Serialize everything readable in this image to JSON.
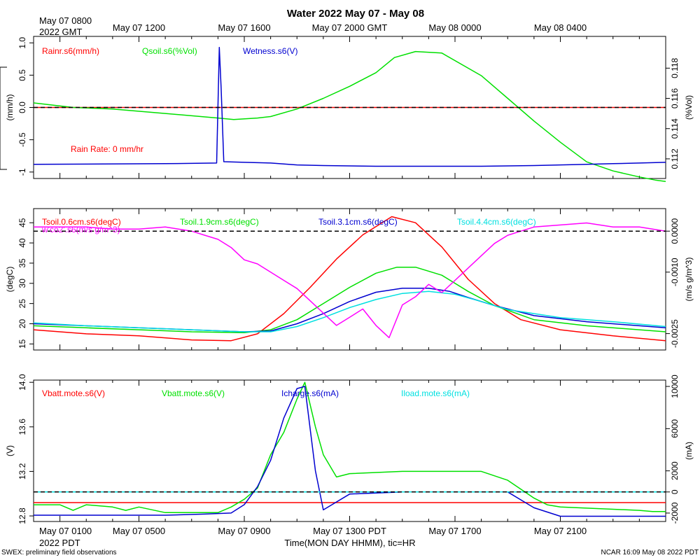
{
  "title": "Water 2022 May 07 - May 08",
  "top_corner_label": [
    "May 07 0800",
    "2022 GMT"
  ],
  "top_ticks": [
    "May 07 1200",
    "May 07 1600",
    "May 07 2000 GMT",
    "May 08 0000",
    "May 08 0400"
  ],
  "bottom_corner_label": [
    "May 07 0100",
    "2022 PDT"
  ],
  "bottom_ticks": [
    "May 07 0500",
    "May 07 0900",
    "May 07 1300 PDT",
    "May 07 1700",
    "May 07 2100"
  ],
  "xlabel": "Time(MON DAY HHMM), tic=HR",
  "footer_left": "SWEX: preliminary field observations",
  "footer_right": "NCAR 16:09 May 08 2022 PDT",
  "chart_data": [
    {
      "type": "line",
      "panel": "water",
      "x_unit": "hours since May 07 0000 PDT",
      "xlim": [
        0,
        24
      ],
      "left_axis": {
        "label": "(mm/h)",
        "ylim": [
          -1.1,
          1.1
        ],
        "ticks": [
          [
            "-1",
            -1
          ],
          [
            "-0.5",
            -0.5
          ],
          [
            "0.0",
            0
          ],
          [
            "0.5",
            0.5
          ],
          [
            "1.0",
            1
          ]
        ]
      },
      "right_axis": {
        "label": "(%Vol)",
        "ylim": [
          0.1107,
          0.1201
        ],
        "ticks": [
          [
            "0.112",
            0.112
          ],
          [
            "0.114",
            0.114
          ],
          [
            "0.116",
            0.116
          ],
          [
            "0.118",
            0.118
          ]
        ]
      },
      "reference_line": {
        "axis": "left",
        "value": 0
      },
      "annotation": "Rain Rate: 0 mm/hr",
      "series": [
        {
          "name": "Rainr.s6(mm/h)",
          "color": "#ff0000",
          "axis": "left",
          "x": [
            0,
            24
          ],
          "y": [
            0,
            0
          ]
        },
        {
          "name": "Qsoil.s6(%Vol)",
          "color": "#00e000",
          "axis": "right",
          "x": [
            0,
            1.5,
            3,
            5,
            7,
            7.6,
            8.5,
            9,
            10,
            11,
            12,
            13,
            13.7,
            14.5,
            15.5,
            17,
            18,
            19,
            20,
            21,
            22,
            23,
            23.6,
            24
          ],
          "y": [
            0.1157,
            0.1154,
            0.1153,
            0.115,
            0.1147,
            0.1146,
            0.1147,
            0.1148,
            0.1153,
            0.116,
            0.1168,
            0.1177,
            0.1187,
            0.1191,
            0.119,
            0.1175,
            0.116,
            0.1145,
            0.1131,
            0.1118,
            0.1112,
            0.1108,
            0.1106,
            0.1105
          ]
        },
        {
          "name": "Wetness.s6(V)",
          "color": "#0000d0",
          "axis": "left",
          "x": [
            0,
            5,
            6.95,
            7.05,
            7.12,
            7.22,
            8,
            9,
            10,
            11,
            13,
            15,
            17,
            19,
            21,
            22,
            23,
            24
          ],
          "y": [
            -0.88,
            -0.87,
            -0.86,
            0.93,
            0.3,
            -0.84,
            -0.85,
            -0.86,
            -0.89,
            -0.9,
            -0.91,
            -0.91,
            -0.91,
            -0.9,
            -0.88,
            -0.87,
            -0.86,
            -0.85
          ]
        }
      ]
    },
    {
      "type": "line",
      "panel": "soil_temperature",
      "x_unit": "hours since May 07 0000 PDT",
      "xlim": [
        0,
        24
      ],
      "left_axis": {
        "label": "(degC)",
        "ylim": [
          13.5,
          48.5
        ],
        "ticks": [
          [
            "15",
            15
          ],
          [
            "20",
            20
          ],
          [
            "25",
            25
          ],
          [
            "30",
            30
          ],
          [
            "35",
            35
          ],
          [
            "40",
            40
          ],
          [
            "45",
            45
          ]
        ]
      },
      "right_axis": {
        "label": "(m/s g/m^3)",
        "ylim": [
          -0.0029,
          0.00055
        ],
        "ticks": [
          [
            "-0.0025",
            -0.0025
          ],
          [
            "-0.0010",
            -0.001
          ],
          [
            "0.0000",
            0
          ]
        ]
      },
      "reference_line": {
        "axis": "right",
        "value": 0
      },
      "series": [
        {
          "name": "Tsoil.0.6cm.s6(degC)",
          "color": "#ff0000",
          "axis": "left",
          "x": [
            0,
            2,
            4,
            6,
            7.5,
            8.5,
            9.5,
            10.5,
            11.5,
            12.5,
            13.6,
            14.5,
            15.5,
            16.5,
            17.5,
            18.5,
            20,
            22,
            24
          ],
          "y": [
            18.5,
            17.5,
            17,
            16,
            15.8,
            17.5,
            22.5,
            29,
            36,
            42,
            46.5,
            45,
            39,
            31,
            25,
            21,
            18.5,
            17,
            15.8
          ]
        },
        {
          "name": "Tsoil.1.9cm.s6(degC)",
          "color": "#00e000",
          "axis": "left",
          "x": [
            0,
            2,
            4,
            6,
            8,
            9,
            10,
            11,
            12,
            13,
            13.8,
            14.5,
            15.5,
            16.5,
            17.5,
            19,
            21,
            24
          ],
          "y": [
            19.5,
            19,
            18.5,
            18,
            17.8,
            18.5,
            21,
            25,
            29,
            32.5,
            34,
            34,
            32,
            28,
            24.5,
            21,
            19.5,
            18
          ]
        },
        {
          "name": "Tsoil.3.1cm.s6(degC)",
          "color": "#0000d0",
          "axis": "left",
          "x": [
            0,
            2,
            4,
            6,
            8,
            9,
            10,
            11,
            12,
            13,
            14,
            15,
            15.8,
            16.5,
            17.5,
            19,
            21,
            24
          ],
          "y": [
            20,
            19.5,
            19,
            18.5,
            18,
            18.2,
            20,
            22.5,
            25.5,
            27.8,
            28.8,
            28.8,
            28,
            26.5,
            24.5,
            22,
            20.5,
            19
          ]
        },
        {
          "name": "Tsoil.4.4cm.s6(degC)",
          "color": "#00e0e0",
          "axis": "left",
          "x": [
            0,
            2,
            4,
            6,
            8,
            9,
            10,
            11,
            12,
            13,
            14,
            15,
            16,
            17,
            18,
            20,
            22,
            24
          ],
          "y": [
            20.2,
            19.5,
            19,
            18.5,
            18,
            18,
            19.3,
            21.5,
            24,
            26,
            27.5,
            28,
            27.3,
            25.5,
            23.5,
            21.5,
            20.5,
            19.3
          ]
        },
        {
          "name": "w'co2'.s6(m/s g/m^3)",
          "color": "#ff00ff",
          "axis": "right",
          "x": [
            0,
            1,
            2,
            3,
            4,
            5,
            5.5,
            6,
            6.5,
            7,
            7.5,
            8,
            8.5,
            9,
            9.5,
            10,
            10.5,
            11,
            11.5,
            12,
            12.5,
            13,
            13.5,
            14,
            14.5,
            15,
            15.5,
            16,
            16.5,
            17,
            17.5,
            18,
            18.5,
            19,
            20,
            21,
            22,
            23,
            24
          ],
          "y": [
            0.0001,
            0.0001,
            0.0001,
            5e-05,
            5e-05,
            0.0001,
            5e-05,
            0.0,
            -0.0001,
            -0.0002,
            -0.0004,
            -0.0007,
            -0.0008,
            -0.001,
            -0.0012,
            -0.0014,
            -0.0017,
            -0.002,
            -0.0023,
            -0.0021,
            -0.0019,
            -0.0023,
            -0.0026,
            -0.0018,
            -0.0016,
            -0.0013,
            -0.0015,
            -0.0012,
            -0.0009,
            -0.0006,
            -0.0003,
            -0.0001,
            0.0,
            0.0001,
            0.00015,
            0.0002,
            0.0001,
            0.0001,
            0.0
          ]
        }
      ]
    },
    {
      "type": "line",
      "panel": "power",
      "x_unit": "hours since May 07 0000 PDT",
      "xlim": [
        0,
        24
      ],
      "left_axis": {
        "label": "(V)",
        "ylim": [
          12.75,
          14.02
        ],
        "ticks": [
          [
            "12.8",
            12.8
          ],
          [
            "13.2",
            13.2
          ],
          [
            "13.6",
            13.6
          ],
          [
            "14.0",
            14
          ]
        ]
      },
      "right_axis": {
        "label": "(mA)",
        "ylim": [
          -2800,
          10600
        ],
        "ticks": [
          [
            "-2000",
            -2000
          ],
          [
            "0",
            0
          ],
          [
            "2000",
            2000
          ],
          [
            "6000",
            6000
          ],
          [
            "10000",
            10000
          ]
        ]
      },
      "reference_line": {
        "axis": "right",
        "value": 0
      },
      "series": [
        {
          "name": "Vbatt.mote.s6(V)",
          "color": "#ff0000",
          "axis": "left",
          "x": [
            0,
            24
          ],
          "y": [
            12.92,
            12.92
          ]
        },
        {
          "name": "Vbatt.mote.s6(V)",
          "color": "#00e000",
          "axis": "left",
          "x": [
            0,
            1,
            1.5,
            2,
            3,
            3.5,
            4,
            5,
            6,
            7,
            7.5,
            8,
            8.5,
            9,
            9.5,
            10,
            10.3,
            10.7,
            11,
            11.5,
            12,
            14,
            16,
            17,
            18,
            19,
            19.5,
            20,
            21,
            22,
            23,
            23.5,
            24
          ],
          "y": [
            12.9,
            12.9,
            12.85,
            12.9,
            12.88,
            12.85,
            12.88,
            12.83,
            12.83,
            12.83,
            12.88,
            12.95,
            13.05,
            13.35,
            13.55,
            13.85,
            14.0,
            13.6,
            13.35,
            13.15,
            13.18,
            13.2,
            13.2,
            13.2,
            13.12,
            12.96,
            12.9,
            12.88,
            12.87,
            12.86,
            12.85,
            12.84,
            12.84
          ]
        },
        {
          "name": "Icharge.s6(mA)",
          "color": "#0000d0",
          "axis": "right",
          "x": [
            0,
            5,
            6.5,
            7.5,
            8,
            8.5,
            9,
            9.5,
            10,
            10.3,
            10.7,
            11,
            12,
            14,
            16,
            18,
            19,
            20,
            22,
            24
          ],
          "y": [
            -2200,
            -2200,
            -2100,
            -2000,
            -1200,
            500,
            3000,
            7000,
            9800,
            10000,
            2000,
            -1700,
            -200,
            0,
            0,
            0,
            -1500,
            -2300,
            -2300,
            -2300
          ]
        },
        {
          "name": "Iload.mote.s6(mA)",
          "color": "#00e0e0",
          "axis": "right",
          "x": [
            0,
            24
          ],
          "y": [
            0,
            0
          ]
        }
      ]
    }
  ]
}
